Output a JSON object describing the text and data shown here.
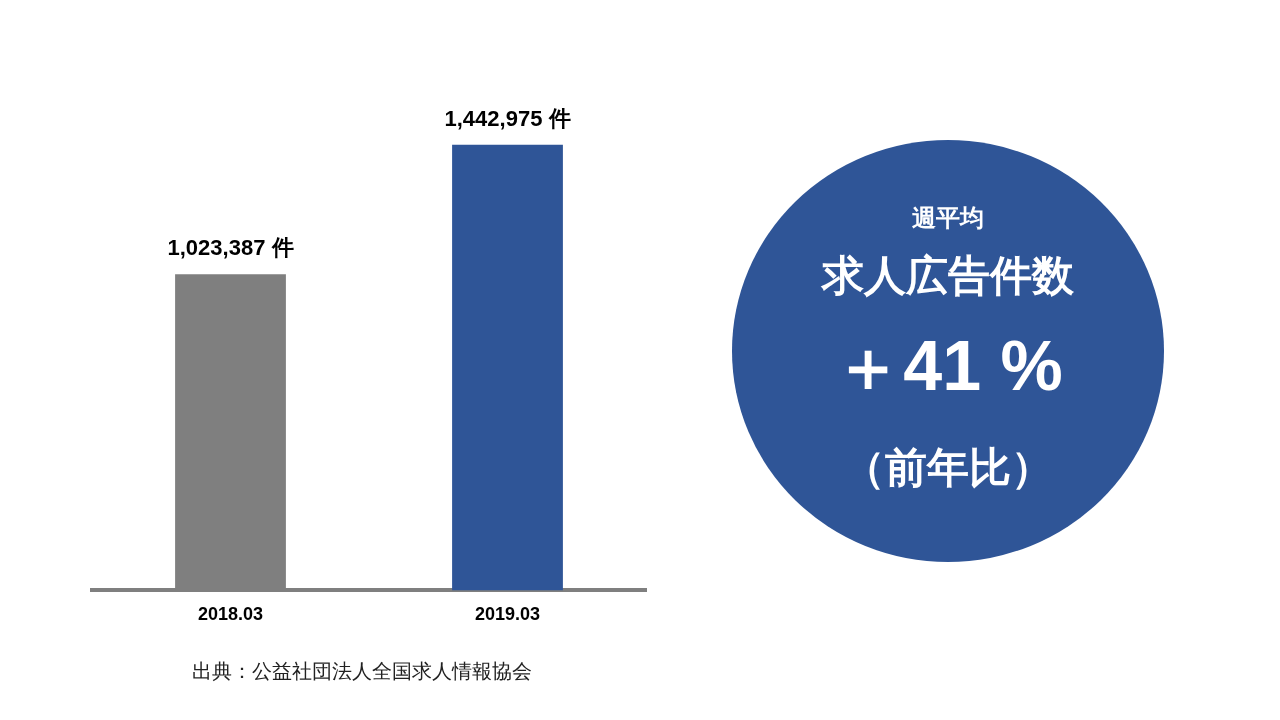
{
  "chart_data": {
    "type": "bar",
    "categories": [
      "2018.03",
      "2019.03"
    ],
    "values": [
      1023387,
      1442975
    ],
    "colors": [
      "#7f7f7f",
      "#2f5597"
    ],
    "value_labels": [
      "1,023,387 件",
      "1,442,975 件"
    ],
    "annotations": [
      "週平均",
      "求人広告件数",
      "＋41 %",
      "（前年比）",
      "出典：公益社団法人全国求人情報協会"
    ],
    "legend": false,
    "grid": false
  }
}
